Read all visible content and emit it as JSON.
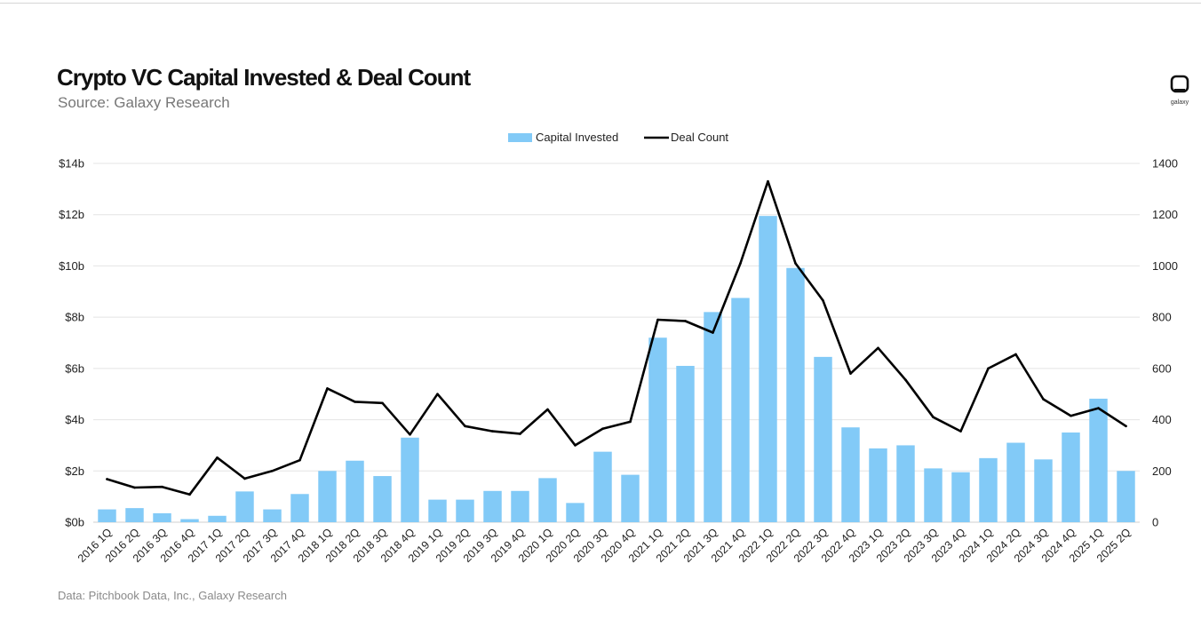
{
  "header": {
    "title": "Crypto VC Capital Invested & Deal Count",
    "subtitle": "Source: Galaxy Research"
  },
  "logo": {
    "text": "galaxy",
    "icon": "galaxy-logo-icon"
  },
  "footer": {
    "note": "Data: Pitchbook Data, Inc., Galaxy Research"
  },
  "colors": {
    "bar": "#82CAF7",
    "line": "#000000",
    "grid": "#e4e4e4"
  },
  "chart_data": {
    "type": "bar",
    "title": "Crypto VC Capital Invested & Deal Count",
    "categories": [
      "2016 1Q",
      "2016 2Q",
      "2016 3Q",
      "2016 4Q",
      "2017 1Q",
      "2017 2Q",
      "2017 3Q",
      "2017 4Q",
      "2018 1Q",
      "2018 2Q",
      "2018 3Q",
      "2018 4Q",
      "2019 1Q",
      "2019 2Q",
      "2019 3Q",
      "2019 4Q",
      "2020 1Q",
      "2020 2Q",
      "2020 3Q",
      "2020 4Q",
      "2021 1Q",
      "2021 2Q",
      "2021 3Q",
      "2021 4Q",
      "2022 1Q",
      "2022 2Q",
      "2022 3Q",
      "2022 4Q",
      "2023 1Q",
      "2023 2Q",
      "2023 3Q",
      "2023 4Q",
      "2024 1Q",
      "2024 2Q",
      "2024 3Q",
      "2024 4Q",
      "2025 1Q",
      "2025 2Q"
    ],
    "series": [
      {
        "name": "Capital Invested",
        "type": "bar",
        "axis": "left",
        "values": [
          0.5,
          0.55,
          0.35,
          0.12,
          0.25,
          1.2,
          0.5,
          1.1,
          2.0,
          2.4,
          1.8,
          3.3,
          0.88,
          0.88,
          1.22,
          1.22,
          1.72,
          0.75,
          2.75,
          1.85,
          7.2,
          6.1,
          8.2,
          8.75,
          11.95,
          9.92,
          6.45,
          3.7,
          2.88,
          3.0,
          2.1,
          1.95,
          2.5,
          3.1,
          2.45,
          3.5,
          4.82,
          2.0
        ]
      },
      {
        "name": "Deal Count",
        "type": "line",
        "axis": "right",
        "values": [
          168,
          135,
          138,
          108,
          252,
          170,
          200,
          242,
          522,
          470,
          465,
          342,
          500,
          375,
          355,
          345,
          440,
          300,
          365,
          392,
          790,
          785,
          740,
          1010,
          1330,
          1010,
          865,
          580,
          680,
          555,
          410,
          355,
          600,
          655,
          480,
          415,
          445,
          375
        ]
      }
    ],
    "y_left": {
      "label": "",
      "ylim": [
        0,
        14
      ],
      "ticks": [
        "$0b",
        "$2b",
        "$4b",
        "$6b",
        "$8b",
        "$10b",
        "$12b",
        "$14b"
      ]
    },
    "y_right": {
      "label": "",
      "ylim": [
        0,
        1400
      ],
      "ticks": [
        "0",
        "200",
        "400",
        "600",
        "800",
        "1000",
        "1200",
        "1400"
      ]
    },
    "xlabel": "",
    "grid": true,
    "legend": {
      "position": "top-center",
      "labels": [
        "Capital Invested",
        "Deal Count"
      ]
    }
  }
}
